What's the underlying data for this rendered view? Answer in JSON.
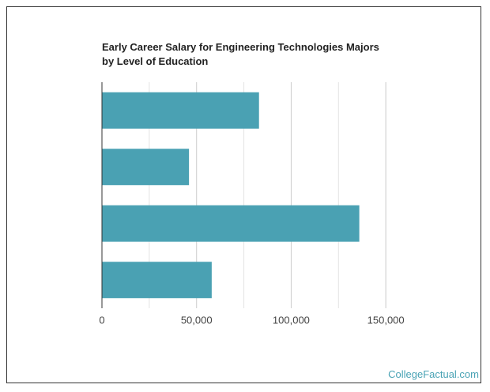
{
  "chart_data": {
    "type": "bar",
    "orientation": "horizontal",
    "title": "Early Career Salary for Engineering Technologies Majors by Level of Education",
    "categories": [
      null,
      null,
      null,
      null
    ],
    "values": [
      83000,
      46000,
      136000,
      58000
    ],
    "color": "#4aa1b3",
    "xlim": [
      0,
      175000
    ],
    "xticks": [
      0,
      {
        "value": 50000,
        "label": "50,000"
      },
      {
        "value": 100000,
        "label": "100,000"
      },
      {
        "value": 150000,
        "label": "150,000"
      }
    ],
    "minor_xticks": [
      25000,
      75000,
      125000
    ],
    "grid": true,
    "source": "CollegeFactual.com"
  }
}
